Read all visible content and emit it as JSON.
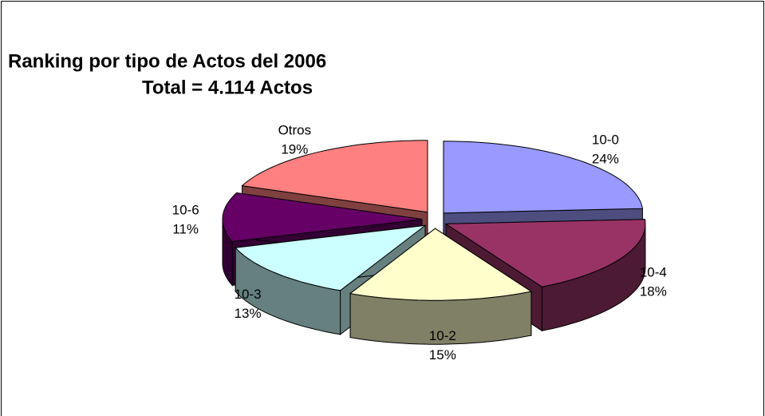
{
  "chart_data": {
    "type": "pie3d",
    "title": "Ranking por tipo de Actos del 2006",
    "subtitle": "Total = 4.114 Actos",
    "categories": [
      "10-0",
      "10-4",
      "10-2",
      "10-3",
      "10-6",
      "Otros"
    ],
    "values": [
      24,
      18,
      15,
      13,
      11,
      19
    ],
    "value_labels": [
      "24%",
      "18%",
      "15%",
      "13%",
      "11%",
      "19%"
    ],
    "colors": [
      "#9999ff",
      "#993366",
      "#ffffcc",
      "#ccffff",
      "#660066",
      "#ff8080"
    ],
    "side_colors": [
      "#4d4d80",
      "#4d1a33",
      "#808066",
      "#668080",
      "#330033",
      "#804040"
    ]
  }
}
